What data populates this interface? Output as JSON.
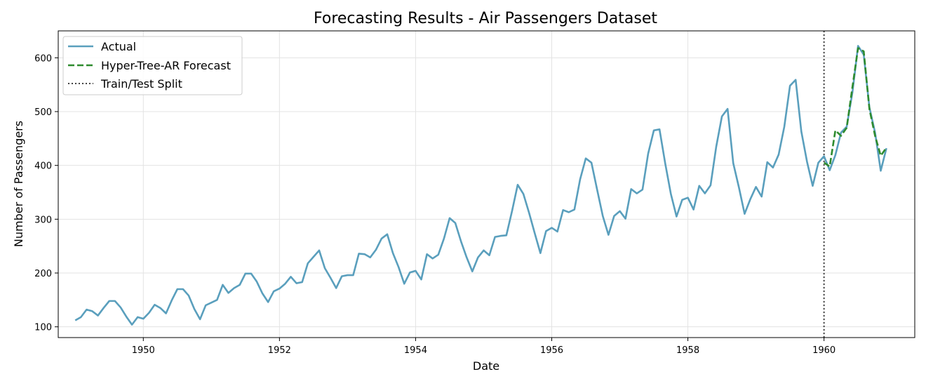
{
  "chart_data": {
    "type": "line",
    "title": "Forecasting Results - Air Passengers Dataset",
    "xlabel": "Date",
    "ylabel": "Number of Passengers",
    "xlim": [
      "1948-10",
      "1961-05"
    ],
    "ylim": [
      80,
      650
    ],
    "x_ticks": [
      1950,
      1952,
      1954,
      1956,
      1958,
      1960
    ],
    "y_ticks": [
      100,
      200,
      300,
      400,
      500,
      600
    ],
    "grid": true,
    "legend_position": "top-left",
    "series": [
      {
        "name": "Actual",
        "color": "#5a9fbd",
        "style": "solid",
        "start": "1949-01",
        "values": [
          112,
          118,
          132,
          129,
          121,
          135,
          148,
          148,
          136,
          119,
          104,
          118,
          115,
          126,
          141,
          135,
          125,
          149,
          170,
          170,
          158,
          133,
          114,
          140,
          145,
          150,
          178,
          163,
          172,
          178,
          199,
          199,
          184,
          162,
          146,
          166,
          171,
          180,
          193,
          181,
          183,
          218,
          230,
          242,
          209,
          191,
          172,
          194,
          196,
          196,
          236,
          235,
          229,
          243,
          264,
          272,
          237,
          211,
          180,
          201,
          204,
          188,
          235,
          227,
          234,
          264,
          302,
          293,
          259,
          229,
          203,
          229,
          242,
          233,
          267,
          269,
          270,
          315,
          364,
          347,
          312,
          274,
          237,
          278,
          284,
          277,
          317,
          313,
          318,
          374,
          413,
          405,
          355,
          306,
          271,
          306,
          315,
          301,
          356,
          348,
          355,
          422,
          465,
          467,
          404,
          347,
          305,
          336,
          340,
          318,
          362,
          348,
          363,
          435,
          491,
          505,
          404,
          359,
          310,
          337,
          360,
          342,
          406,
          396,
          420,
          472,
          548,
          559,
          463,
          407,
          362,
          405,
          417,
          391,
          419,
          461,
          472,
          535,
          622,
          606,
          508,
          461,
          390,
          432
        ]
      },
      {
        "name": "Hyper-Tree-AR Forecast",
        "color": "#2e8b2e",
        "style": "dashed",
        "start": "1960-01",
        "values": [
          405,
          398,
          465,
          455,
          470,
          545,
          618,
          612,
          505,
          455,
          418,
          433
        ]
      }
    ],
    "split": {
      "name": "Train/Test Split",
      "x": "1960-01",
      "color": "#444444",
      "style": "dotted"
    }
  }
}
